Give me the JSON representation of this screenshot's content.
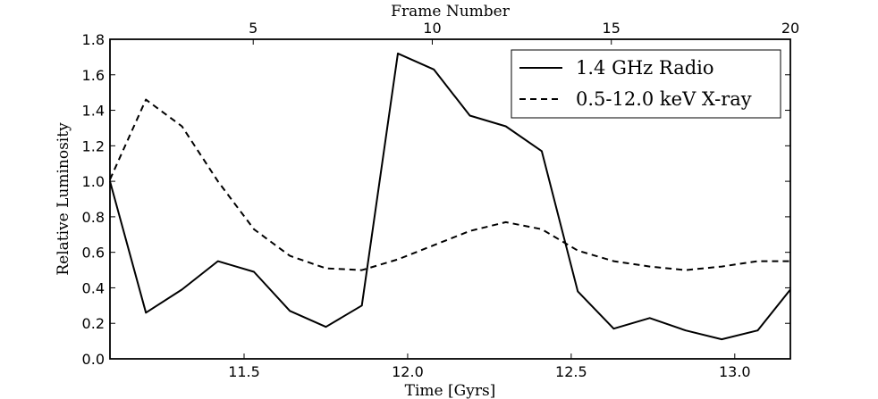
{
  "chart_data": {
    "type": "line",
    "xlabel": "Time [Gyrs]",
    "ylabel": "Relative Luminosity",
    "top_xlabel": "Frame Number",
    "xlim": [
      11.09,
      13.17
    ],
    "ylim": [
      0.0,
      1.8
    ],
    "top_xlim": [
      1,
      20
    ],
    "xticks": [
      11.5,
      12.0,
      12.5,
      13.0
    ],
    "xtick_labels": [
      "11.5",
      "12.0",
      "12.5",
      "13.0"
    ],
    "yticks": [
      0.0,
      0.2,
      0.4,
      0.6,
      0.8,
      1.0,
      1.2,
      1.4,
      1.6,
      1.8
    ],
    "ytick_labels": [
      "0.0",
      "0.2",
      "0.4",
      "0.6",
      "0.8",
      "1.0",
      "1.2",
      "1.4",
      "1.6",
      "1.8"
    ],
    "top_xticks": [
      5,
      10,
      15,
      20
    ],
    "top_xtick_labels": [
      "5",
      "10",
      "15",
      "20"
    ],
    "grid": false,
    "legend_position": "top-right",
    "x": [
      11.09,
      11.2,
      11.31,
      11.42,
      11.53,
      11.64,
      11.75,
      11.86,
      11.97,
      12.08,
      12.19,
      12.3,
      12.41,
      12.52,
      12.63,
      12.74,
      12.85,
      12.96,
      13.07,
      13.17
    ],
    "series": [
      {
        "name": "1.4 GHz Radio",
        "style": "solid",
        "color": "#000000",
        "values": [
          1.0,
          0.26,
          0.39,
          0.55,
          0.49,
          0.27,
          0.18,
          0.3,
          1.72,
          1.63,
          1.37,
          1.31,
          1.17,
          0.38,
          0.17,
          0.23,
          0.16,
          0.11,
          0.16,
          0.39
        ]
      },
      {
        "name": "0.5-12.0 keV X-ray",
        "style": "dashed",
        "color": "#000000",
        "values": [
          1.01,
          1.46,
          1.31,
          1.0,
          0.73,
          0.58,
          0.51,
          0.5,
          0.56,
          0.64,
          0.72,
          0.77,
          0.73,
          0.61,
          0.55,
          0.52,
          0.5,
          0.52,
          0.55,
          0.55
        ]
      }
    ]
  }
}
